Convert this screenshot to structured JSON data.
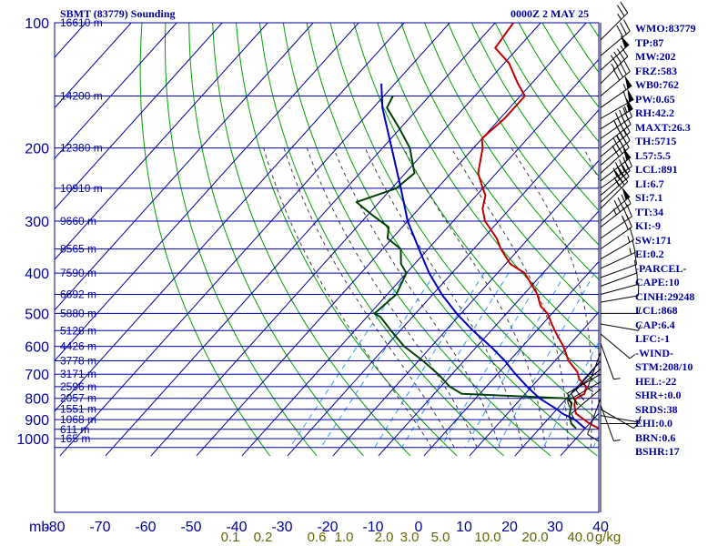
{
  "header": {
    "title": "SBMT (83779) Sounding",
    "datetime": "0000Z  2 MAY 25"
  },
  "colors": {
    "isobar": "#0000a0",
    "isotherm": "#0000a0",
    "dry_adiabat": "#00a000",
    "moist_adiabat": "#404040",
    "mixing_ratio": "#3399ff",
    "temperature": "#c00000",
    "dewpoint": "#004000",
    "parcel": "#0000c0",
    "axis_label": "#0000a0",
    "mixing_label": "#666600"
  },
  "stats": [
    "WMO:83779",
    "TP:87",
    "MW:202",
    "FRZ:583",
    "WB0:762",
    "PW:0.65",
    "RH:42.2",
    "MAXT:26.3",
    "TH:5715",
    "L57:5.5",
    "LCL:891",
    "LI:6.7",
    "SI:7.1",
    "TT:34",
    "KI:-9",
    "SW:171",
    "EI:0.2",
    "-PARCEL-",
    "CAPE:10",
    "CINH:29248",
    "LCL:868",
    "CAP:6.4",
    "LFC:-1",
    "-WIND-",
    "STM:208/10",
    "HEL:-22",
    "SHR+:0.0",
    "SRDS:38",
    "EHI:0.0",
    "BRN:0.6",
    "BSHR:17"
  ],
  "chart_data": {
    "type": "line",
    "chart_kind": "skew-t log-p sounding",
    "x_unit_label": "mb",
    "pressure_ticks": [
      100,
      200,
      300,
      400,
      500,
      600,
      700,
      800,
      900,
      1000
    ],
    "pressure_range": [
      100,
      1050
    ],
    "temperature_ticks": [
      -80,
      -70,
      -60,
      -50,
      -40,
      -30,
      -20,
      -10,
      0,
      10,
      20,
      30,
      40
    ],
    "temperature_range": [
      -80,
      40
    ],
    "mixing_ratio_ticks": [
      "0.1",
      "0.2",
      "0.6",
      "1.0",
      "2.0",
      "3.0",
      "5.0",
      "10.0",
      "20.0",
      "40.0"
    ],
    "mixing_ratio_unit": "g/kg",
    "height_labels": [
      {
        "p": 100,
        "label": "16610 m"
      },
      {
        "p": 150,
        "label": "14200 m"
      },
      {
        "p": 200,
        "label": "12380 m"
      },
      {
        "p": 250,
        "label": "10910 m"
      },
      {
        "p": 300,
        "label": "9660 m"
      },
      {
        "p": 350,
        "label": "8565 m"
      },
      {
        "p": 400,
        "label": "7590 m"
      },
      {
        "p": 450,
        "label": "6692 m"
      },
      {
        "p": 500,
        "label": "5880 m"
      },
      {
        "p": 550,
        "label": "5128 m"
      },
      {
        "p": 600,
        "label": "4426 m"
      },
      {
        "p": 650,
        "label": "3778 m"
      },
      {
        "p": 700,
        "label": "3171 m"
      },
      {
        "p": 750,
        "label": "2596 m"
      },
      {
        "p": 800,
        "label": "2057 m"
      },
      {
        "p": 850,
        "label": "1551 m"
      },
      {
        "p": 900,
        "label": "1068 m"
      },
      {
        "p": 950,
        "label": "611 m"
      },
      {
        "p": 1000,
        "label": "165 m"
      }
    ],
    "series": [
      {
        "key": "temperature",
        "points": [
          [
            100,
            -76
          ],
          [
            115,
            -75
          ],
          [
            125,
            -69
          ],
          [
            140,
            -63
          ],
          [
            150,
            -59
          ],
          [
            170,
            -59
          ],
          [
            190,
            -60
          ],
          [
            200,
            -58
          ],
          [
            230,
            -54
          ],
          [
            250,
            -50
          ],
          [
            260,
            -48
          ],
          [
            280,
            -46
          ],
          [
            300,
            -43
          ],
          [
            330,
            -37
          ],
          [
            350,
            -34
          ],
          [
            380,
            -29
          ],
          [
            400,
            -24
          ],
          [
            450,
            -17
          ],
          [
            480,
            -14
          ],
          [
            500,
            -11
          ],
          [
            530,
            -8
          ],
          [
            560,
            -5
          ],
          [
            600,
            -1
          ],
          [
            650,
            3
          ],
          [
            690,
            7
          ],
          [
            720,
            9
          ],
          [
            750,
            12
          ],
          [
            780,
            13
          ],
          [
            800,
            12
          ],
          [
            830,
            13
          ],
          [
            870,
            15
          ],
          [
            920,
            20
          ],
          [
            945,
            23
          ]
        ]
      },
      {
        "key": "dewpoint",
        "points": [
          [
            150,
            -88
          ],
          [
            160,
            -87
          ],
          [
            180,
            -80
          ],
          [
            200,
            -74
          ],
          [
            230,
            -68
          ],
          [
            250,
            -69
          ],
          [
            270,
            -75
          ],
          [
            290,
            -69
          ],
          [
            310,
            -63
          ],
          [
            330,
            -61
          ],
          [
            350,
            -56
          ],
          [
            380,
            -53
          ],
          [
            400,
            -50
          ],
          [
            450,
            -48
          ],
          [
            500,
            -49
          ],
          [
            510,
            -47
          ],
          [
            550,
            -42
          ],
          [
            600,
            -36
          ],
          [
            650,
            -29
          ],
          [
            700,
            -23
          ],
          [
            750,
            -18
          ],
          [
            780,
            -14
          ],
          [
            800,
            10
          ],
          [
            820,
            12
          ],
          [
            850,
            13
          ],
          [
            880,
            14
          ],
          [
            920,
            16
          ],
          [
            945,
            18
          ]
        ]
      },
      {
        "key": "parcel",
        "points": [
          [
            140,
            -93
          ],
          [
            160,
            -88
          ],
          [
            200,
            -78
          ],
          [
            250,
            -68
          ],
          [
            300,
            -60
          ],
          [
            350,
            -52
          ],
          [
            400,
            -45
          ],
          [
            450,
            -38
          ],
          [
            500,
            -31
          ],
          [
            550,
            -24
          ],
          [
            600,
            -17
          ],
          [
            650,
            -11
          ],
          [
            700,
            -6
          ],
          [
            750,
            -1
          ],
          [
            800,
            4
          ],
          [
            850,
            10
          ],
          [
            870,
            12
          ],
          [
            900,
            16
          ],
          [
            945,
            20
          ]
        ]
      }
    ],
    "winds": [
      [
        110,
        45,
        25
      ],
      [
        120,
        50,
        30
      ],
      [
        130,
        48,
        50
      ],
      [
        140,
        45,
        45
      ],
      [
        150,
        50,
        40
      ],
      [
        160,
        55,
        55
      ],
      [
        170,
        60,
        60
      ],
      [
        180,
        58,
        55
      ],
      [
        190,
        55,
        45
      ],
      [
        200,
        52,
        40
      ],
      [
        210,
        50,
        35
      ],
      [
        220,
        50,
        45
      ],
      [
        230,
        48,
        40
      ],
      [
        240,
        52,
        50
      ],
      [
        250,
        55,
        45
      ],
      [
        260,
        50,
        40
      ],
      [
        270,
        48,
        35
      ],
      [
        280,
        45,
        30
      ],
      [
        300,
        50,
        50
      ],
      [
        310,
        52,
        45
      ],
      [
        330,
        55,
        25
      ],
      [
        350,
        55,
        20
      ],
      [
        370,
        60,
        15
      ],
      [
        390,
        65,
        15
      ],
      [
        410,
        70,
        10
      ],
      [
        430,
        70,
        10
      ],
      [
        450,
        75,
        10
      ],
      [
        470,
        80,
        10
      ],
      [
        500,
        90,
        5
      ],
      [
        530,
        100,
        5
      ],
      [
        560,
        130,
        5
      ],
      [
        590,
        160,
        5
      ],
      [
        620,
        200,
        5
      ],
      [
        650,
        220,
        10
      ],
      [
        680,
        230,
        10
      ],
      [
        700,
        240,
        10
      ],
      [
        730,
        240,
        5
      ],
      [
        760,
        230,
        5
      ],
      [
        800,
        200,
        10
      ],
      [
        830,
        160,
        5
      ],
      [
        850,
        120,
        5
      ],
      [
        880,
        100,
        5
      ],
      [
        920,
        90,
        5
      ]
    ]
  }
}
